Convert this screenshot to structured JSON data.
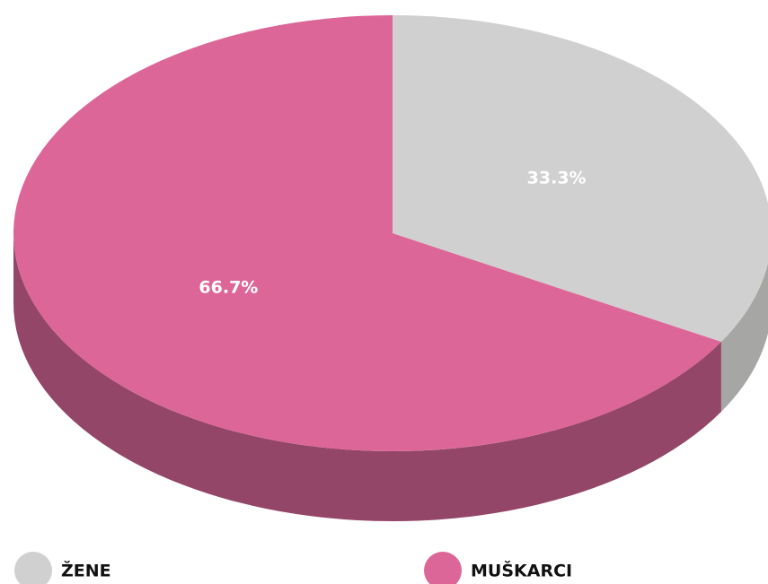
{
  "chart_data": {
    "type": "pie",
    "categories": [
      "ŽENE",
      "MUŠKARCI"
    ],
    "values": [
      33.3,
      66.7
    ],
    "value_labels": [
      "33.3%",
      "66.7%"
    ],
    "colors": [
      "#d0d0d0",
      "#dd6699"
    ],
    "side_colors": [
      "#a6a6a4",
      "#934668"
    ]
  }
}
